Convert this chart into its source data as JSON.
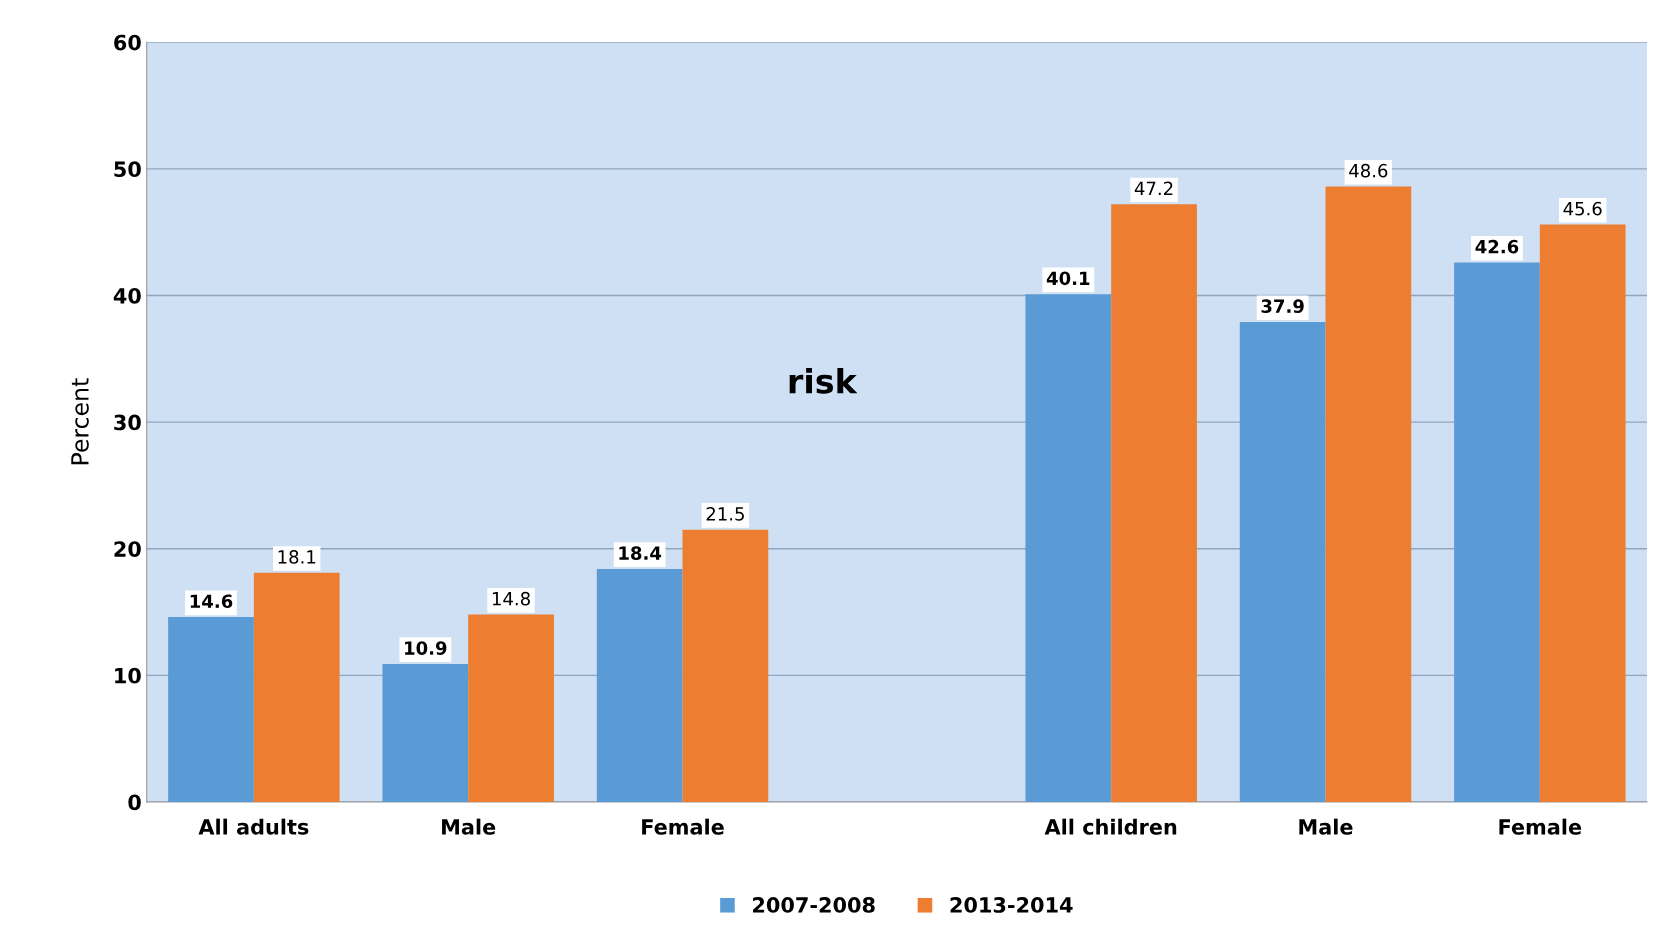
{
  "chart_data": {
    "type": "bar",
    "categories": [
      "All adults",
      "Male",
      "Female",
      null,
      "All children",
      "Male",
      "Female"
    ],
    "series": [
      {
        "name": "2007-2008",
        "color": "#5b9bd5",
        "values": [
          14.6,
          10.9,
          18.4,
          null,
          40.1,
          37.9,
          42.6
        ]
      },
      {
        "name": "2013-2014",
        "color": "#ed7d31",
        "values": [
          18.1,
          14.8,
          21.5,
          null,
          47.2,
          48.6,
          45.6
        ]
      }
    ],
    "ylabel": "Percent",
    "annotations": [
      "risk"
    ],
    "ylim": [
      0,
      60
    ],
    "yticks": [
      0,
      10,
      20,
      30,
      40,
      50,
      60
    ],
    "grid": "y",
    "legend": "bottom",
    "data_labels": true
  }
}
